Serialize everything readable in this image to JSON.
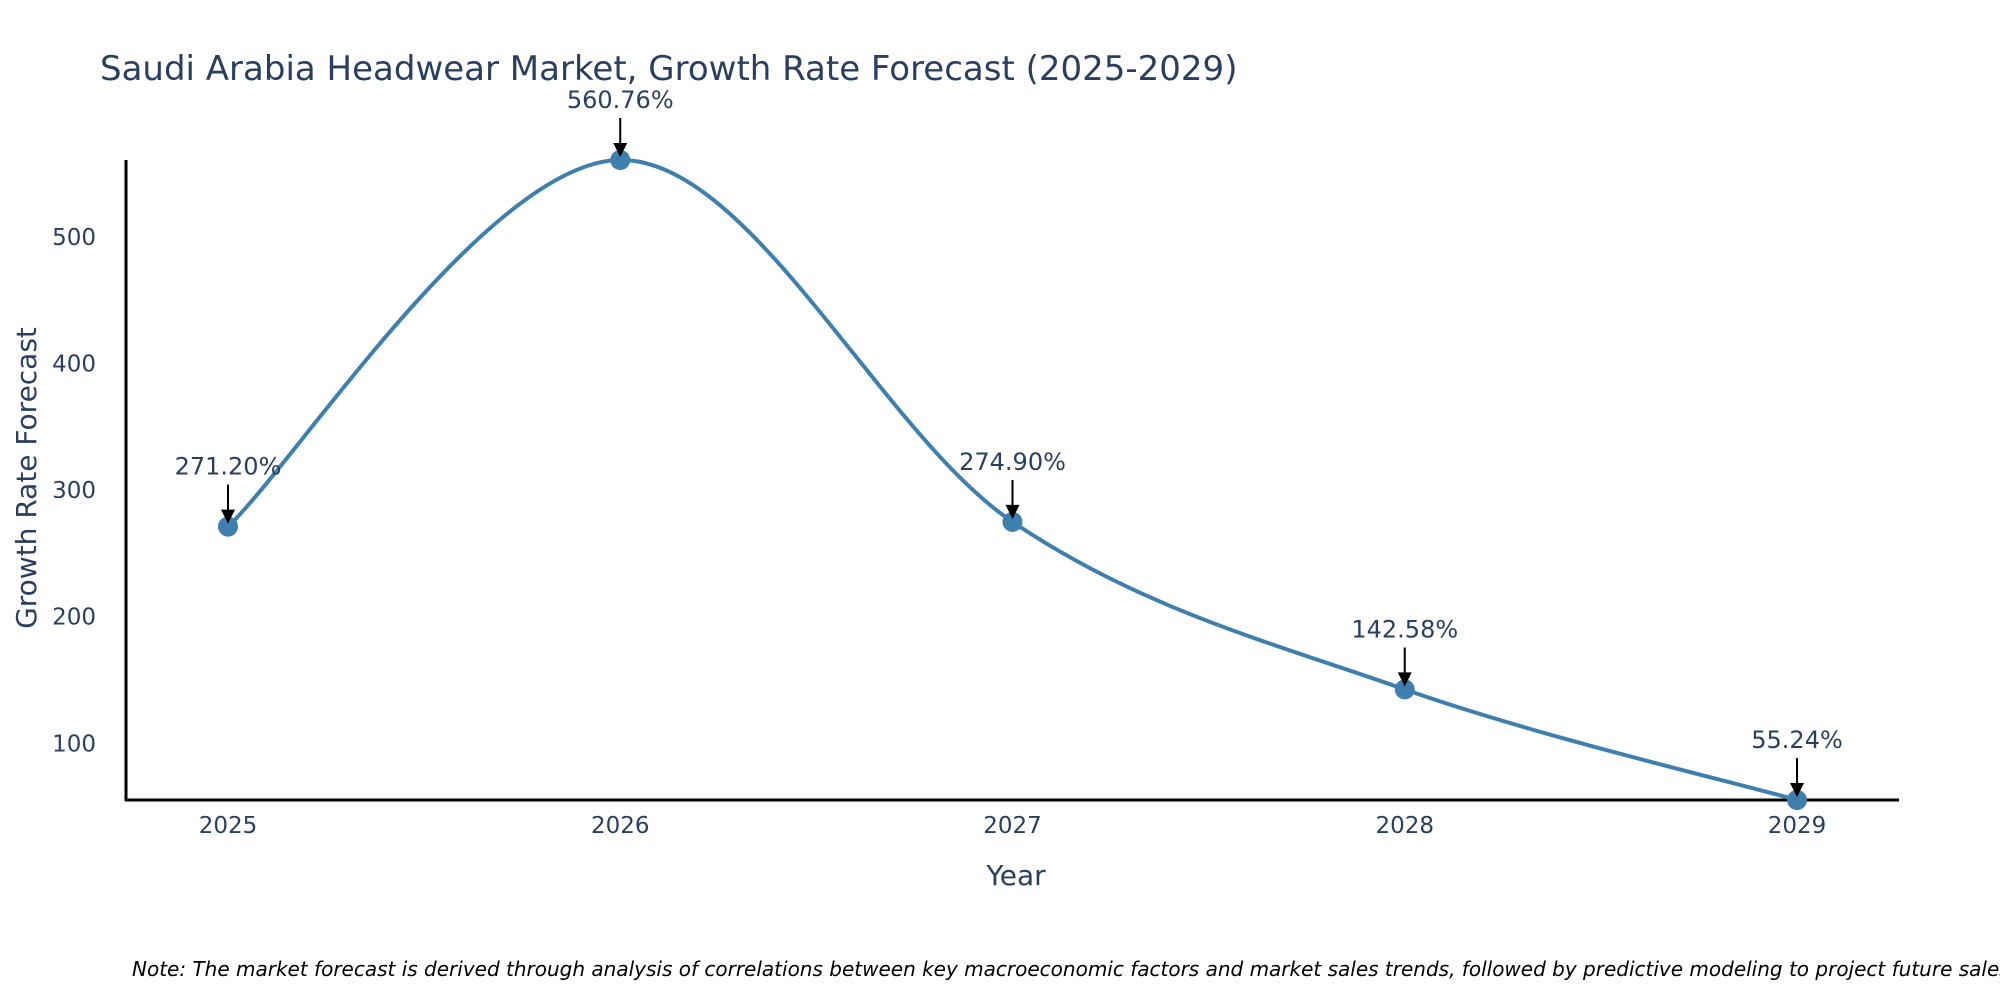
{
  "chart_data": {
    "type": "line",
    "title": "Saudi Arabia Headwear Market, Growth Rate Forecast (2025-2029)",
    "xlabel": "Year",
    "ylabel": "Growth Rate Forecast",
    "categories": [
      "2025",
      "2026",
      "2027",
      "2028",
      "2029"
    ],
    "series": [
      {
        "name": "Growth Rate Forecast",
        "values": [
          271.2,
          560.76,
          274.9,
          142.58,
          55.24
        ]
      }
    ],
    "data_labels": [
      "271.20%",
      "560.76%",
      "274.90%",
      "142.58%",
      "55.24%"
    ],
    "y_ticks": [
      100,
      200,
      300,
      400,
      500
    ],
    "ylim": [
      55.24,
      560.76
    ],
    "xlim": [
      2024.74,
      2029.26
    ],
    "line_shape": "spline",
    "grid": false,
    "colors": {
      "line": "#3e7fad",
      "marker": "#3e7fad",
      "text": "#2a3f5f",
      "axis": "#000000"
    },
    "note": "Note: The market forecast is derived through analysis of correlations between key macroeconomic factors and market sales trends, followed by predictive modeling to project future sales."
  }
}
